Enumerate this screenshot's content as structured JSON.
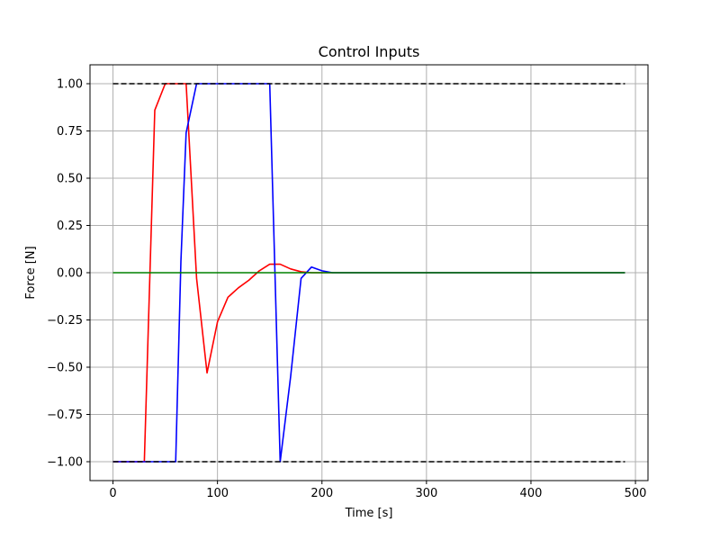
{
  "chart_data": {
    "type": "line",
    "title": "Control Inputs",
    "xlabel": "Time [s]",
    "ylabel": "Force [N]",
    "xlim": [
      -22,
      512
    ],
    "ylim": [
      -1.1,
      1.1
    ],
    "grid": true,
    "x_ticks": [
      0,
      100,
      200,
      300,
      400,
      500
    ],
    "x_tick_labels": [
      "0",
      "100",
      "200",
      "300",
      "400",
      "500"
    ],
    "y_ticks": [
      -1.0,
      -0.75,
      -0.5,
      -0.25,
      0.0,
      0.25,
      0.5,
      0.75,
      1.0
    ],
    "y_tick_labels": [
      "−1.00",
      "−0.75",
      "−0.50",
      "−0.25",
      "0.00",
      "0.25",
      "0.50",
      "0.75",
      "1.00"
    ],
    "series": [
      {
        "color": "#ff0000",
        "style": "solid",
        "x": [
          0,
          10,
          20,
          30,
          40,
          50,
          60,
          70,
          80,
          90,
          100,
          110,
          120,
          130,
          140,
          150,
          160,
          170,
          180,
          190,
          200,
          210,
          220,
          490
        ],
        "y": [
          -1.0,
          -1.0,
          -1.0,
          -1.0,
          0.86,
          1.0,
          1.0,
          1.0,
          -0.03,
          -0.53,
          -0.26,
          -0.13,
          -0.08,
          -0.04,
          0.01,
          0.045,
          0.045,
          0.02,
          0.005,
          0.0,
          0.0,
          0.0,
          0.0,
          0.0
        ]
      },
      {
        "color": "#0000ff",
        "style": "solid",
        "x": [
          0,
          10,
          20,
          30,
          40,
          50,
          60,
          65,
          70,
          80,
          90,
          100,
          110,
          120,
          130,
          140,
          150,
          160,
          170,
          180,
          190,
          200,
          210,
          220,
          490
        ],
        "y": [
          -1.0,
          -1.0,
          -1.0,
          -1.0,
          -1.0,
          -1.0,
          -1.0,
          0.06,
          0.74,
          1.0,
          1.0,
          1.0,
          1.0,
          1.0,
          1.0,
          1.0,
          1.0,
          -1.0,
          -0.55,
          -0.03,
          0.03,
          0.01,
          0.0,
          0.0,
          0.0
        ]
      },
      {
        "color": "#008000",
        "style": "solid",
        "x": [
          0,
          490
        ],
        "y": [
          0.0,
          0.0
        ]
      },
      {
        "color": "#000000",
        "style": "dashed",
        "x": [
          0,
          490
        ],
        "y": [
          1.0,
          1.0
        ]
      },
      {
        "color": "#000000",
        "style": "dashed",
        "x": [
          0,
          490
        ],
        "y": [
          -1.0,
          -1.0
        ]
      }
    ]
  }
}
